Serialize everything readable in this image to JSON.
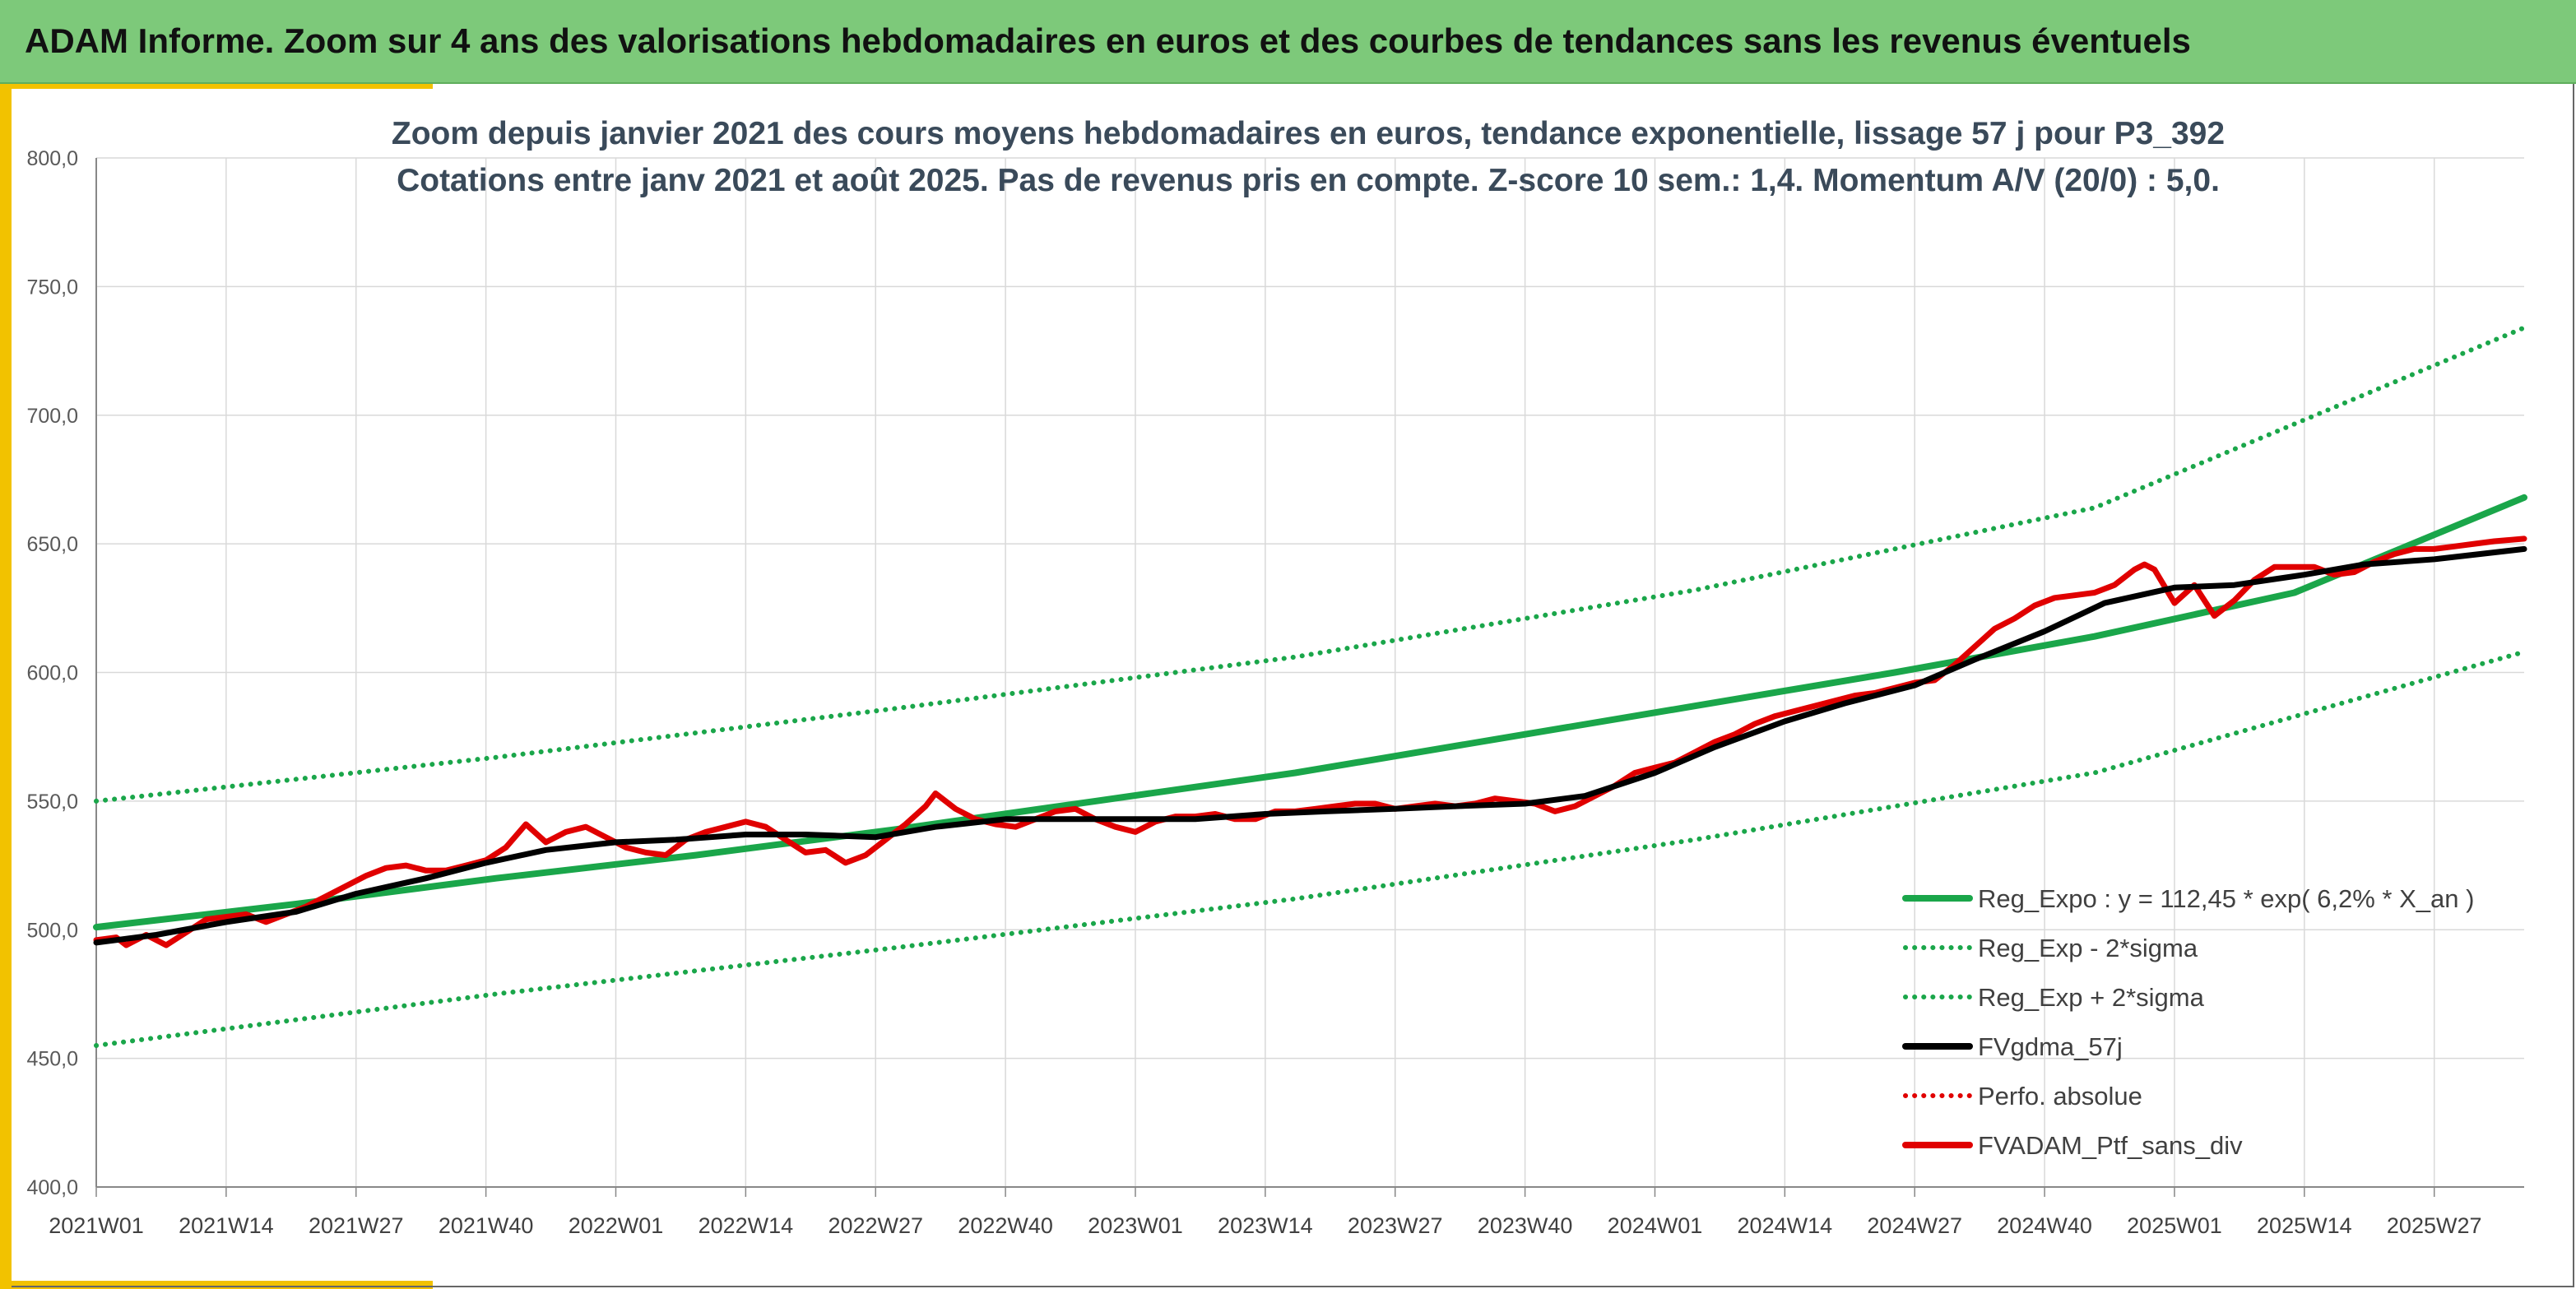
{
  "banner": {
    "title": "ADAM Informe. Zoom sur 4 ans des valorisations hebdomadaires en euros et des courbes de tendances sans les revenus éventuels"
  },
  "colors": {
    "banner_bg": "#7dc97a",
    "accent": "#f2c200",
    "reg_expo": "#1aa64a",
    "sigma_bands": "#1aa64a",
    "fvgdma": "#000000",
    "perfo": "#e00000",
    "fvadam": "#e00000",
    "grid": "#d9d9d9"
  },
  "chart_data": {
    "type": "line",
    "title_lines": [
      "Zoom depuis janvier 2021 des cours moyens hebdomadaires en euros, tendance exponentielle, lissage 57 j pour P3_392",
      "Cotations entre janv 2021 et août 2025. Pas de revenus pris en compte. Z-score 10 sem.: 1,4. Momentum A/V (20/0) : 5,0."
    ],
    "xlabel": "",
    "ylabel": "",
    "ylim": [
      400,
      800
    ],
    "yticks": [
      "400,0",
      "450,0",
      "500,0",
      "550,0",
      "600,0",
      "650,0",
      "700,0",
      "750,0",
      "800,0"
    ],
    "x_tick_labels": [
      "2021W01",
      "2021W14",
      "2021W27",
      "2021W40",
      "2022W01",
      "2022W14",
      "2022W27",
      "2022W40",
      "2023W01",
      "2023W14",
      "2023W27",
      "2023W40",
      "2024W01",
      "2024W14",
      "2024W27",
      "2024W40",
      "2025W01",
      "2025W14",
      "2025W27"
    ],
    "x_range_weeks": [
      0,
      243
    ],
    "grid": true,
    "legend_position": "bottom-right, inside plot",
    "series": [
      {
        "name": "Reg_Expo : y = 112,45 * exp( 6,2% *  X_an )",
        "style": "solid",
        "key": "reg_expo",
        "points": [
          [
            0,
            501
          ],
          [
            20,
            510
          ],
          [
            40,
            520
          ],
          [
            60,
            529
          ],
          [
            80,
            539
          ],
          [
            100,
            550
          ],
          [
            120,
            561
          ],
          [
            140,
            574
          ],
          [
            160,
            587
          ],
          [
            180,
            600
          ],
          [
            200,
            614
          ],
          [
            220,
            631
          ],
          [
            243,
            668
          ]
        ]
      },
      {
        "name": "Reg_Exp - 2*sigma",
        "style": "dotted",
        "key": "sigma_bands",
        "points": [
          [
            0,
            455
          ],
          [
            40,
            475
          ],
          [
            80,
            493
          ],
          [
            120,
            512
          ],
          [
            160,
            535
          ],
          [
            200,
            561
          ],
          [
            243,
            608
          ]
        ]
      },
      {
        "name": "Reg_Exp + 2*sigma",
        "style": "dotted",
        "key": "sigma_bands",
        "points": [
          [
            0,
            550
          ],
          [
            40,
            567
          ],
          [
            80,
            586
          ],
          [
            120,
            606
          ],
          [
            160,
            632
          ],
          [
            200,
            664
          ],
          [
            243,
            734
          ]
        ]
      },
      {
        "name": "FVgdma_57j",
        "style": "solid",
        "key": "fvgdma",
        "points": [
          [
            0,
            495
          ],
          [
            6,
            498
          ],
          [
            13,
            503
          ],
          [
            20,
            507
          ],
          [
            26,
            514
          ],
          [
            33,
            520
          ],
          [
            39,
            526
          ],
          [
            45,
            531
          ],
          [
            52,
            534
          ],
          [
            58,
            535
          ],
          [
            65,
            537
          ],
          [
            71,
            537
          ],
          [
            78,
            536
          ],
          [
            84,
            540
          ],
          [
            91,
            543
          ],
          [
            97,
            543
          ],
          [
            104,
            543
          ],
          [
            110,
            543
          ],
          [
            117,
            545
          ],
          [
            123,
            546
          ],
          [
            130,
            547
          ],
          [
            136,
            548
          ],
          [
            143,
            549
          ],
          [
            149,
            552
          ],
          [
            156,
            561
          ],
          [
            162,
            571
          ],
          [
            169,
            581
          ],
          [
            175,
            588
          ],
          [
            182,
            595
          ],
          [
            188,
            605
          ],
          [
            195,
            616
          ],
          [
            201,
            627
          ],
          [
            208,
            633
          ],
          [
            214,
            634
          ],
          [
            221,
            638
          ],
          [
            227,
            642
          ],
          [
            234,
            644
          ],
          [
            243,
            648
          ]
        ]
      },
      {
        "name": "Perfo. absolue",
        "style": "dotted",
        "key": "perfo",
        "points": []
      },
      {
        "name": "FVADAM_Ptf_sans_div",
        "style": "solid",
        "key": "fvadam",
        "points": [
          [
            0,
            496
          ],
          [
            2,
            497
          ],
          [
            3,
            494
          ],
          [
            5,
            498
          ],
          [
            7,
            494
          ],
          [
            9,
            499
          ],
          [
            11,
            504
          ],
          [
            13,
            505
          ],
          [
            15,
            506
          ],
          [
            17,
            503
          ],
          [
            19,
            506
          ],
          [
            21,
            509
          ],
          [
            23,
            513
          ],
          [
            25,
            517
          ],
          [
            27,
            521
          ],
          [
            29,
            524
          ],
          [
            31,
            525
          ],
          [
            33,
            523
          ],
          [
            35,
            523
          ],
          [
            37,
            525
          ],
          [
            39,
            527
          ],
          [
            41,
            532
          ],
          [
            43,
            541
          ],
          [
            45,
            534
          ],
          [
            47,
            538
          ],
          [
            49,
            540
          ],
          [
            51,
            536
          ],
          [
            53,
            532
          ],
          [
            55,
            530
          ],
          [
            57,
            529
          ],
          [
            59,
            535
          ],
          [
            61,
            538
          ],
          [
            63,
            540
          ],
          [
            65,
            542
          ],
          [
            67,
            540
          ],
          [
            69,
            535
          ],
          [
            71,
            530
          ],
          [
            73,
            531
          ],
          [
            75,
            526
          ],
          [
            77,
            529
          ],
          [
            79,
            535
          ],
          [
            81,
            541
          ],
          [
            83,
            548
          ],
          [
            84,
            553
          ],
          [
            86,
            547
          ],
          [
            88,
            543
          ],
          [
            90,
            541
          ],
          [
            92,
            540
          ],
          [
            94,
            543
          ],
          [
            96,
            546
          ],
          [
            98,
            547
          ],
          [
            100,
            543
          ],
          [
            102,
            540
          ],
          [
            104,
            538
          ],
          [
            106,
            542
          ],
          [
            108,
            544
          ],
          [
            110,
            544
          ],
          [
            112,
            545
          ],
          [
            114,
            543
          ],
          [
            116,
            543
          ],
          [
            118,
            546
          ],
          [
            120,
            546
          ],
          [
            122,
            547
          ],
          [
            124,
            548
          ],
          [
            126,
            549
          ],
          [
            128,
            549
          ],
          [
            130,
            547
          ],
          [
            132,
            548
          ],
          [
            134,
            549
          ],
          [
            136,
            548
          ],
          [
            138,
            549
          ],
          [
            140,
            551
          ],
          [
            142,
            550
          ],
          [
            144,
            549
          ],
          [
            146,
            546
          ],
          [
            148,
            548
          ],
          [
            150,
            552
          ],
          [
            152,
            556
          ],
          [
            154,
            561
          ],
          [
            156,
            563
          ],
          [
            158,
            565
          ],
          [
            160,
            569
          ],
          [
            162,
            573
          ],
          [
            164,
            576
          ],
          [
            166,
            580
          ],
          [
            168,
            583
          ],
          [
            170,
            585
          ],
          [
            172,
            587
          ],
          [
            174,
            589
          ],
          [
            176,
            591
          ],
          [
            178,
            592
          ],
          [
            180,
            594
          ],
          [
            182,
            596
          ],
          [
            184,
            597
          ],
          [
            186,
            603
          ],
          [
            188,
            610
          ],
          [
            190,
            617
          ],
          [
            192,
            621
          ],
          [
            194,
            626
          ],
          [
            196,
            629
          ],
          [
            198,
            630
          ],
          [
            200,
            631
          ],
          [
            202,
            634
          ],
          [
            204,
            640
          ],
          [
            205,
            642
          ],
          [
            206,
            640
          ],
          [
            208,
            627
          ],
          [
            210,
            634
          ],
          [
            212,
            622
          ],
          [
            214,
            628
          ],
          [
            216,
            636
          ],
          [
            218,
            641
          ],
          [
            220,
            641
          ],
          [
            222,
            641
          ],
          [
            224,
            638
          ],
          [
            226,
            639
          ],
          [
            228,
            643
          ],
          [
            230,
            646
          ],
          [
            232,
            648
          ],
          [
            234,
            648
          ],
          [
            236,
            649
          ],
          [
            238,
            650
          ],
          [
            240,
            651
          ],
          [
            243,
            652
          ]
        ]
      }
    ]
  }
}
